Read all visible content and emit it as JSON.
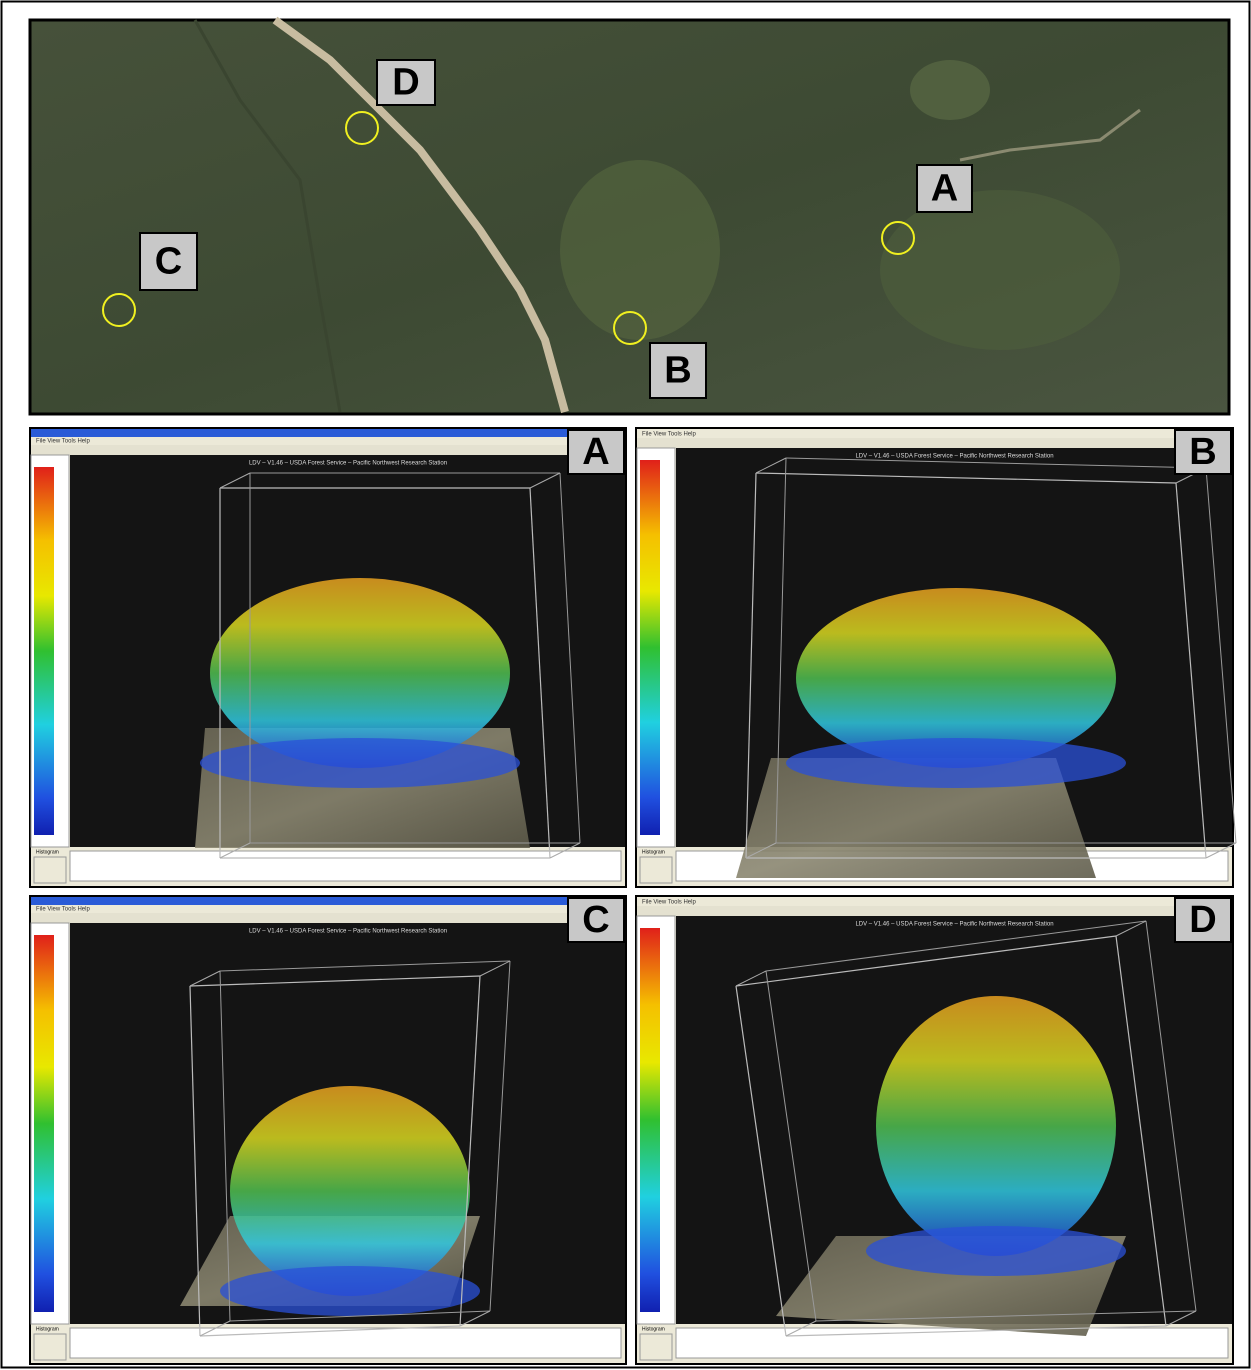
{
  "map": {
    "labels": [
      "D",
      "A",
      "C",
      "B"
    ]
  },
  "panels": [
    {
      "label": "A",
      "title": "LDV – V1.46 – USDA Forest Service – Pacific Northwest Research Station",
      "menu": "File  View  Tools  Help",
      "histogram": "Histogram"
    },
    {
      "label": "B",
      "title": "LDV – V1.46 – USDA Forest Service – Pacific Northwest Research Station",
      "menu": "File  View  Tools  Help",
      "histogram": "Histogram"
    },
    {
      "label": "C",
      "title": "LDV – V1.46 – USDA Forest Service – Pacific Northwest Research Station",
      "menu": "File  View  Tools  Help",
      "histogram": "Histogram"
    },
    {
      "label": "D",
      "title": "LDV – V1.46 – USDA Forest Service – Pacific Northwest Research Station",
      "menu": "File  View  Tools  Help",
      "histogram": "Histogram"
    }
  ]
}
